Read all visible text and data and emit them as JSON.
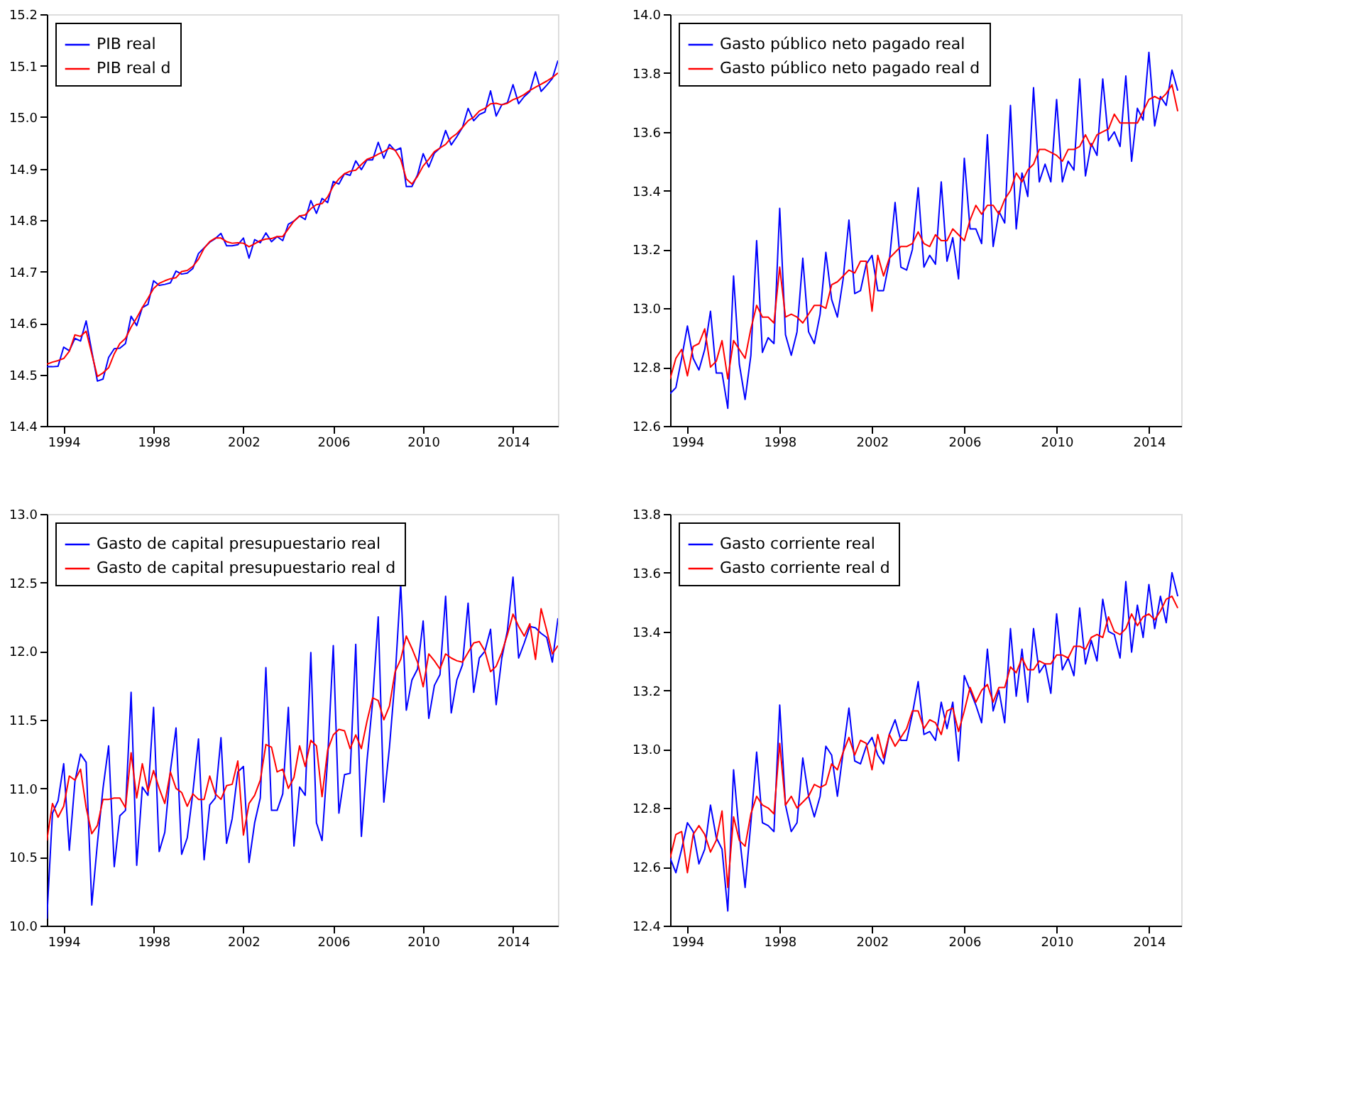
{
  "chart_data": [
    {
      "type": "line",
      "legend": "top left",
      "grid": false,
      "x": [
        1993.25,
        1993.5,
        1993.75,
        1994.0,
        1994.25,
        1994.5,
        1994.75,
        1995.0,
        1995.25,
        1995.5,
        1995.75,
        1996.0,
        1996.25,
        1996.5,
        1996.75,
        1997.0,
        1997.25,
        1997.5,
        1997.75,
        1998.0,
        1998.25,
        1998.5,
        1998.75,
        1999.0,
        1999.25,
        1999.5,
        1999.75,
        2000.0,
        2000.25,
        2000.5,
        2000.75,
        2001.0,
        2001.25,
        2001.5,
        2001.75,
        2002.0,
        2002.25,
        2002.5,
        2002.75,
        2003.0,
        2003.25,
        2003.5,
        2003.75,
        2004.0,
        2004.25,
        2004.5,
        2004.75,
        2005.0,
        2005.25,
        2005.5,
        2005.75,
        2006.0,
        2006.25,
        2006.5,
        2006.75,
        2007.0,
        2007.25,
        2007.5,
        2007.75,
        2008.0,
        2008.25,
        2008.5,
        2008.75,
        2009.0,
        2009.25,
        2009.5,
        2009.75,
        2010.0,
        2010.25,
        2010.5,
        2010.75,
        2011.0,
        2011.25,
        2011.5,
        2011.75,
        2012.0,
        2012.25,
        2012.5,
        2012.75,
        2013.0,
        2013.25,
        2013.5,
        2013.75,
        2014.0,
        2014.25,
        2014.5,
        2014.75,
        2015.0,
        2015.25,
        2015.5,
        2015.75,
        2016.0
      ],
      "xlim": [
        1993.25,
        2016.0
      ],
      "xticks": [
        1994,
        1998,
        2002,
        2006,
        2010,
        2014
      ],
      "ylim": [
        14.4,
        15.2
      ],
      "yticks": [
        14.4,
        14.5,
        14.6,
        14.7,
        14.8,
        14.9,
        {
          "value": 15.0,
          "label": "15.0"
        },
        15.1,
        15.2
      ],
      "series": [
        {
          "name": "PIB real",
          "color": "#0000ff",
          "values": [
            14.515,
            14.515,
            14.516,
            14.553,
            14.546,
            14.57,
            14.565,
            14.604,
            14.545,
            14.487,
            14.491,
            14.533,
            14.55,
            14.551,
            14.56,
            14.613,
            14.595,
            14.63,
            14.636,
            14.682,
            14.673,
            14.675,
            14.678,
            14.701,
            14.695,
            14.697,
            14.706,
            14.735,
            14.746,
            14.757,
            14.764,
            14.774,
            14.75,
            14.75,
            14.752,
            14.765,
            14.726,
            14.762,
            14.756,
            14.775,
            14.758,
            14.768,
            14.76,
            14.792,
            14.798,
            14.808,
            14.801,
            14.838,
            14.813,
            14.842,
            14.834,
            14.875,
            14.87,
            14.89,
            14.887,
            14.915,
            14.898,
            14.917,
            14.917,
            14.951,
            14.92,
            14.947,
            14.935,
            14.94,
            14.865,
            14.865,
            14.888,
            14.929,
            14.903,
            14.93,
            14.94,
            14.974,
            14.946,
            14.962,
            14.98,
            15.017,
            14.993,
            15.005,
            15.01,
            15.051,
            15.002,
            15.024,
            15.028,
            15.063,
            15.026,
            15.04,
            15.05,
            15.088,
            15.05,
            15.062,
            15.075,
            15.11
          ]
        },
        {
          "name": "PIB real d",
          "color": "#ff0000",
          "values": [
            14.52,
            14.524,
            14.527,
            14.531,
            14.545,
            14.577,
            14.574,
            14.584,
            14.54,
            14.496,
            14.503,
            14.513,
            14.54,
            14.56,
            14.57,
            14.592,
            14.61,
            14.63,
            14.648,
            14.667,
            14.677,
            14.682,
            14.686,
            14.688,
            14.7,
            14.702,
            14.71,
            14.724,
            14.745,
            14.758,
            14.765,
            14.765,
            14.758,
            14.755,
            14.756,
            14.755,
            14.748,
            14.754,
            14.76,
            14.763,
            14.764,
            14.768,
            14.768,
            14.783,
            14.798,
            14.808,
            14.81,
            14.822,
            14.83,
            14.832,
            14.845,
            14.866,
            14.88,
            14.89,
            14.895,
            14.897,
            14.908,
            14.918,
            14.922,
            14.928,
            14.933,
            14.94,
            14.936,
            14.918,
            14.88,
            14.87,
            14.885,
            14.905,
            14.918,
            14.933,
            14.94,
            14.947,
            14.96,
            14.968,
            14.98,
            14.993,
            15.0,
            15.012,
            15.017,
            15.026,
            15.027,
            15.024,
            15.027,
            15.034,
            15.038,
            15.044,
            15.052,
            15.058,
            15.064,
            15.07,
            15.077,
            15.086
          ]
        }
      ]
    },
    {
      "type": "line",
      "legend": "top left",
      "grid": false,
      "x": [
        1993.25,
        1993.5,
        1993.75,
        1994.0,
        1994.25,
        1994.5,
        1994.75,
        1995.0,
        1995.25,
        1995.5,
        1995.75,
        1996.0,
        1996.25,
        1996.5,
        1996.75,
        1997.0,
        1997.25,
        1997.5,
        1997.75,
        1998.0,
        1998.25,
        1998.5,
        1998.75,
        1999.0,
        1999.25,
        1999.5,
        1999.75,
        2000.0,
        2000.25,
        2000.5,
        2000.75,
        2001.0,
        2001.25,
        2001.5,
        2001.75,
        2002.0,
        2002.25,
        2002.5,
        2002.75,
        2003.0,
        2003.25,
        2003.5,
        2003.75,
        2004.0,
        2004.25,
        2004.5,
        2004.75,
        2005.0,
        2005.25,
        2005.5,
        2005.75,
        2006.0,
        2006.25,
        2006.5,
        2006.75,
        2007.0,
        2007.25,
        2007.5,
        2007.75,
        2008.0,
        2008.25,
        2008.5,
        2008.75,
        2009.0,
        2009.25,
        2009.5,
        2009.75,
        2010.0,
        2010.25,
        2010.5,
        2010.75,
        2011.0,
        2011.25,
        2011.5,
        2011.75,
        2012.0,
        2012.25,
        2012.5,
        2012.75,
        2013.0,
        2013.25,
        2013.5,
        2013.75,
        2014.0,
        2014.25,
        2014.5,
        2014.75,
        2015.0,
        2015.25
      ],
      "xlim": [
        1993.25,
        2015.4
      ],
      "xticks": [
        1994,
        1998,
        2002,
        2006,
        2010,
        2014
      ],
      "ylim": [
        12.6,
        14.0
      ],
      "yticks": [
        12.6,
        12.8,
        {
          "value": 13.0,
          "label": "13.0"
        },
        13.2,
        13.4,
        13.6,
        13.8,
        {
          "value": 14.0,
          "label": "14.0"
        }
      ],
      "series": [
        {
          "name": "Gasto público neto pagado real",
          "color": "#0000ff",
          "values": [
            12.71,
            12.73,
            12.83,
            12.94,
            12.83,
            12.79,
            12.86,
            12.99,
            12.78,
            12.78,
            12.66,
            13.11,
            12.81,
            12.69,
            12.84,
            13.23,
            12.85,
            12.9,
            12.88,
            13.34,
            12.91,
            12.84,
            12.92,
            13.17,
            12.92,
            12.88,
            12.98,
            13.19,
            13.03,
            12.97,
            13.1,
            13.3,
            13.05,
            13.06,
            13.15,
            13.18,
            13.06,
            13.06,
            13.16,
            13.36,
            13.14,
            13.13,
            13.2,
            13.41,
            13.14,
            13.18,
            13.15,
            13.43,
            13.16,
            13.24,
            13.1,
            13.51,
            13.27,
            13.27,
            13.22,
            13.59,
            13.21,
            13.33,
            13.29,
            13.69,
            13.27,
            13.46,
            13.38,
            13.75,
            13.43,
            13.49,
            13.43,
            13.71,
            13.43,
            13.5,
            13.47,
            13.78,
            13.45,
            13.56,
            13.52,
            13.78,
            13.57,
            13.6,
            13.55,
            13.79,
            13.5,
            13.68,
            13.64,
            13.87,
            13.62,
            13.72,
            13.69,
            13.81,
            13.74
          ]
        },
        {
          "name": "Gasto público neto pagado real d",
          "color": "#ff0000",
          "values": [
            12.76,
            12.83,
            12.86,
            12.77,
            12.87,
            12.88,
            12.93,
            12.8,
            12.82,
            12.89,
            12.76,
            12.89,
            12.86,
            12.83,
            12.93,
            13.01,
            12.97,
            12.97,
            12.95,
            13.14,
            12.97,
            12.98,
            12.97,
            12.95,
            12.98,
            13.01,
            13.01,
            13.0,
            13.08,
            13.09,
            13.11,
            13.13,
            13.12,
            13.16,
            13.16,
            12.99,
            13.18,
            13.11,
            13.17,
            13.19,
            13.21,
            13.21,
            13.22,
            13.26,
            13.22,
            13.21,
            13.25,
            13.23,
            13.23,
            13.27,
            13.25,
            13.23,
            13.3,
            13.35,
            13.32,
            13.35,
            13.35,
            13.32,
            13.37,
            13.4,
            13.46,
            13.43,
            13.47,
            13.49,
            13.54,
            13.54,
            13.53,
            13.52,
            13.5,
            13.54,
            13.54,
            13.55,
            13.59,
            13.55,
            13.59,
            13.6,
            13.61,
            13.66,
            13.63,
            13.63,
            13.63,
            13.63,
            13.67,
            13.71,
            13.72,
            13.71,
            13.73,
            13.76,
            13.67
          ]
        }
      ]
    },
    {
      "type": "line",
      "legend": "top left",
      "grid": false,
      "x": [
        1993.25,
        1993.5,
        1993.75,
        1994.0,
        1994.25,
        1994.5,
        1994.75,
        1995.0,
        1995.25,
        1995.5,
        1995.75,
        1996.0,
        1996.25,
        1996.5,
        1996.75,
        1997.0,
        1997.25,
        1997.5,
        1997.75,
        1998.0,
        1998.25,
        1998.5,
        1998.75,
        1999.0,
        1999.25,
        1999.5,
        1999.75,
        2000.0,
        2000.25,
        2000.5,
        2000.75,
        2001.0,
        2001.25,
        2001.5,
        2001.75,
        2002.0,
        2002.25,
        2002.5,
        2002.75,
        2003.0,
        2003.25,
        2003.5,
        2003.75,
        2004.0,
        2004.25,
        2004.5,
        2004.75,
        2005.0,
        2005.25,
        2005.5,
        2005.75,
        2006.0,
        2006.25,
        2006.5,
        2006.75,
        2007.0,
        2007.25,
        2007.5,
        2007.75,
        2008.0,
        2008.25,
        2008.5,
        2008.75,
        2009.0,
        2009.25,
        2009.5,
        2009.75,
        2010.0,
        2010.25,
        2010.5,
        2010.75,
        2011.0,
        2011.25,
        2011.5,
        2011.75,
        2012.0,
        2012.25,
        2012.5,
        2012.75,
        2013.0,
        2013.25,
        2013.5,
        2013.75,
        2014.0,
        2014.25,
        2014.5,
        2014.75,
        2015.0,
        2015.25,
        2015.5,
        2015.75,
        2016.0
      ],
      "xlim": [
        1993.25,
        2016.0
      ],
      "xticks": [
        1994,
        1998,
        2002,
        2006,
        2010,
        2014
      ],
      "ylim": [
        10.0,
        13.0
      ],
      "yticks": [
        {
          "value": 10.0,
          "label": "10.0"
        },
        10.5,
        {
          "value": 11.0,
          "label": "11.0"
        },
        11.5,
        {
          "value": 12.0,
          "label": "12.0"
        },
        12.5,
        {
          "value": 13.0,
          "label": "13.0"
        }
      ],
      "series": [
        {
          "name": "Gasto de capital presupuestario real",
          "color": "#0000ff",
          "values": [
            10.05,
            10.82,
            10.91,
            11.18,
            10.55,
            11.05,
            11.25,
            11.19,
            10.15,
            10.6,
            11.0,
            11.31,
            10.43,
            10.8,
            10.84,
            11.7,
            10.44,
            11.01,
            10.95,
            11.59,
            10.54,
            10.68,
            11.13,
            11.44,
            10.52,
            10.64,
            10.97,
            11.36,
            10.48,
            10.88,
            10.93,
            11.37,
            10.6,
            10.78,
            11.12,
            11.16,
            10.46,
            10.75,
            10.93,
            11.88,
            10.84,
            10.84,
            10.96,
            11.59,
            10.58,
            11.01,
            10.95,
            11.99,
            10.75,
            10.62,
            11.22,
            12.04,
            10.82,
            11.1,
            11.11,
            12.05,
            10.65,
            11.2,
            11.63,
            12.25,
            10.9,
            11.3,
            11.8,
            12.49,
            11.57,
            11.79,
            11.87,
            12.22,
            11.51,
            11.75,
            11.83,
            12.4,
            11.55,
            11.79,
            11.9,
            12.35,
            11.7,
            11.95,
            12.0,
            12.16,
            11.61,
            11.95,
            12.15,
            12.54,
            11.95,
            12.06,
            12.18,
            12.17,
            12.13,
            12.1,
            11.92,
            12.24
          ]
        },
        {
          "name": "Gasto de capital presupuestario real d",
          "color": "#ff0000",
          "values": [
            10.62,
            10.89,
            10.79,
            10.87,
            11.09,
            11.06,
            11.14,
            10.86,
            10.67,
            10.73,
            10.92,
            10.92,
            10.93,
            10.93,
            10.86,
            11.26,
            10.93,
            11.18,
            10.98,
            11.13,
            11.0,
            10.89,
            11.12,
            11.0,
            10.97,
            10.87,
            10.96,
            10.92,
            10.92,
            11.09,
            10.96,
            10.92,
            11.02,
            11.03,
            11.2,
            10.66,
            10.89,
            10.95,
            11.06,
            11.32,
            11.3,
            11.12,
            11.14,
            11.0,
            11.08,
            11.31,
            11.16,
            11.35,
            11.31,
            10.94,
            11.28,
            11.39,
            11.43,
            11.42,
            11.29,
            11.39,
            11.29,
            11.49,
            11.66,
            11.64,
            11.5,
            11.6,
            11.85,
            11.94,
            12.11,
            12.02,
            11.92,
            11.74,
            11.98,
            11.93,
            11.87,
            11.98,
            11.95,
            11.93,
            11.92,
            11.99,
            12.06,
            12.07,
            12.0,
            11.85,
            11.89,
            11.99,
            12.12,
            12.27,
            12.18,
            12.11,
            12.2,
            11.94,
            12.31,
            12.15,
            11.98,
            12.04
          ]
        }
      ]
    },
    {
      "type": "line",
      "legend": "top left",
      "grid": false,
      "x": [
        1993.25,
        1993.5,
        1993.75,
        1994.0,
        1994.25,
        1994.5,
        1994.75,
        1995.0,
        1995.25,
        1995.5,
        1995.75,
        1996.0,
        1996.25,
        1996.5,
        1996.75,
        1997.0,
        1997.25,
        1997.5,
        1997.75,
        1998.0,
        1998.25,
        1998.5,
        1998.75,
        1999.0,
        1999.25,
        1999.5,
        1999.75,
        2000.0,
        2000.25,
        2000.5,
        2000.75,
        2001.0,
        2001.25,
        2001.5,
        2001.75,
        2002.0,
        2002.25,
        2002.5,
        2002.75,
        2003.0,
        2003.25,
        2003.5,
        2003.75,
        2004.0,
        2004.25,
        2004.5,
        2004.75,
        2005.0,
        2005.25,
        2005.5,
        2005.75,
        2006.0,
        2006.25,
        2006.5,
        2006.75,
        2007.0,
        2007.25,
        2007.5,
        2007.75,
        2008.0,
        2008.25,
        2008.5,
        2008.75,
        2009.0,
        2009.25,
        2009.5,
        2009.75,
        2010.0,
        2010.25,
        2010.5,
        2010.75,
        2011.0,
        2011.25,
        2011.5,
        2011.75,
        2012.0,
        2012.25,
        2012.5,
        2012.75,
        2013.0,
        2013.25,
        2013.5,
        2013.75,
        2014.0,
        2014.25,
        2014.5,
        2014.75,
        2015.0,
        2015.25
      ],
      "xlim": [
        1993.25,
        2015.4
      ],
      "xticks": [
        1994,
        1998,
        2002,
        2006,
        2010,
        2014
      ],
      "ylim": [
        12.4,
        13.8
      ],
      "yticks": [
        12.4,
        12.6,
        12.8,
        {
          "value": 13.0,
          "label": "13.0"
        },
        13.2,
        13.4,
        13.6,
        13.8
      ],
      "series": [
        {
          "name": "Gasto corriente real",
          "color": "#0000ff",
          "values": [
            12.63,
            12.58,
            12.66,
            12.75,
            12.72,
            12.61,
            12.66,
            12.81,
            12.7,
            12.66,
            12.45,
            12.93,
            12.71,
            12.53,
            12.75,
            12.99,
            12.75,
            12.74,
            12.72,
            13.15,
            12.81,
            12.72,
            12.75,
            12.97,
            12.84,
            12.77,
            12.84,
            13.01,
            12.98,
            12.84,
            12.99,
            13.14,
            12.96,
            12.95,
            13.01,
            13.04,
            12.98,
            12.95,
            13.05,
            13.1,
            13.03,
            13.03,
            13.12,
            13.23,
            13.05,
            13.06,
            13.03,
            13.16,
            13.07,
            13.16,
            12.96,
            13.25,
            13.2,
            13.15,
            13.09,
            13.34,
            13.13,
            13.2,
            13.09,
            13.41,
            13.18,
            13.34,
            13.16,
            13.41,
            13.26,
            13.29,
            13.19,
            13.46,
            13.27,
            13.31,
            13.25,
            13.48,
            13.29,
            13.37,
            13.3,
            13.51,
            13.4,
            13.39,
            13.31,
            13.57,
            13.33,
            13.49,
            13.38,
            13.56,
            13.41,
            13.52,
            13.43,
            13.6,
            13.52
          ]
        },
        {
          "name": "Gasto corriente real d",
          "color": "#ff0000",
          "values": [
            12.63,
            12.71,
            12.72,
            12.58,
            12.71,
            12.74,
            12.71,
            12.65,
            12.69,
            12.79,
            12.53,
            12.77,
            12.69,
            12.67,
            12.78,
            12.84,
            12.81,
            12.8,
            12.78,
            13.02,
            12.81,
            12.84,
            12.8,
            12.82,
            12.84,
            12.88,
            12.87,
            12.88,
            12.95,
            12.93,
            12.99,
            13.04,
            12.98,
            13.03,
            13.02,
            12.93,
            13.05,
            12.97,
            13.05,
            13.01,
            13.04,
            13.07,
            13.13,
            13.13,
            13.07,
            13.1,
            13.09,
            13.05,
            13.13,
            13.14,
            13.06,
            13.13,
            13.21,
            13.16,
            13.2,
            13.22,
            13.16,
            13.21,
            13.21,
            13.28,
            13.26,
            13.31,
            13.27,
            13.27,
            13.3,
            13.29,
            13.29,
            13.32,
            13.32,
            13.31,
            13.35,
            13.35,
            13.34,
            13.38,
            13.39,
            13.38,
            13.45,
            13.4,
            13.39,
            13.41,
            13.46,
            13.42,
            13.45,
            13.46,
            13.44,
            13.47,
            13.51,
            13.52,
            13.48
          ]
        }
      ]
    }
  ]
}
